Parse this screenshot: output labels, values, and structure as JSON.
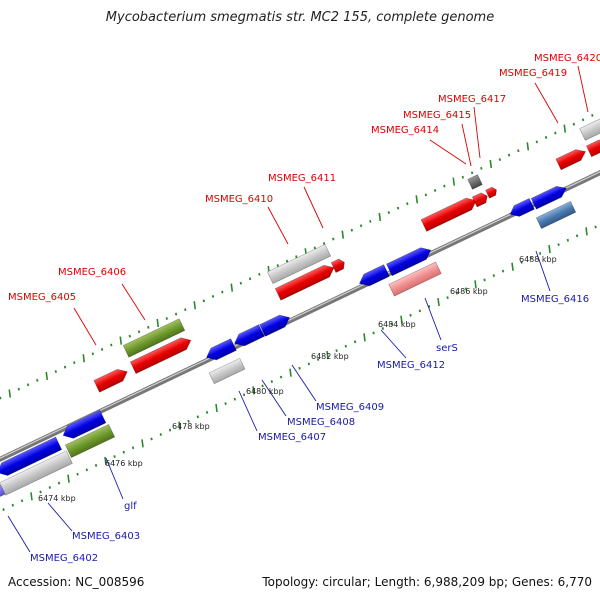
{
  "title": "Mycobacterium smegmatis str. MC2 155, complete genome",
  "accession": "Accession: NC_008596",
  "topology": "Topology: circular; Length: 6,988,209 bp; Genes: 6,770",
  "colors": {
    "forward_label": "#dd0000",
    "reverse_label": "#1a1aaa",
    "tick": "#2a8a2a"
  },
  "tick_labels": [
    "6474 kbp",
    "6476 kbp",
    "6478 kbp",
    "6480 kbp",
    "6482 kbp",
    "6484 kbp",
    "6486 kbp",
    "6488 kbp"
  ],
  "gene_labels": [
    "MSMEG_6402",
    "MSMEG_6403",
    "glf",
    "MSMEG_6405",
    "MSMEG_6406",
    "MSMEG_6407",
    "MSMEG_6408",
    "MSMEG_6409",
    "MSMEG_6410",
    "MSMEG_6411",
    "MSMEG_6412",
    "serS",
    "MSMEG_6414",
    "MSMEG_6415",
    "MSMEG_6416",
    "MSMEG_6417",
    "MSMEG_6419",
    "MSMEG_6420"
  ]
}
